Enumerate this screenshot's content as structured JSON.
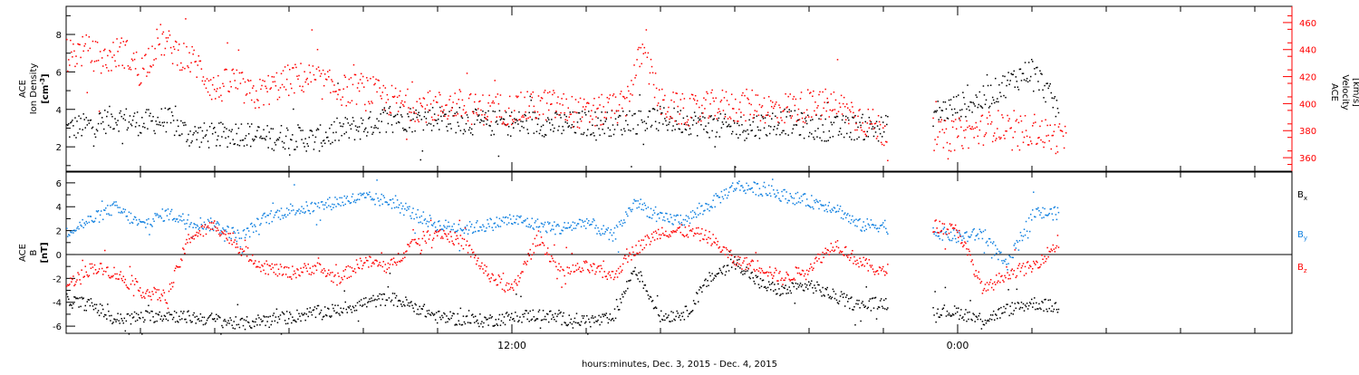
{
  "chart_data": [
    {
      "type": "scatter",
      "panel": "top",
      "title": "",
      "ylabel_left": [
        "ACE",
        "Ion Density",
        "[cm",
        "-3",
        "]"
      ],
      "ylabel_right": [
        "ACE",
        "Velocity",
        "[km/s]"
      ],
      "x_range_hours": [
        0,
        33
      ],
      "y_left_range": [
        0.7,
        9.5
      ],
      "y_right_range": [
        350,
        472
      ],
      "y_left_ticks": [
        2,
        4,
        6,
        8
      ],
      "y_right_ticks": [
        360,
        380,
        400,
        420,
        440,
        460
      ],
      "grid": false,
      "series": [
        {
          "name": "",
          "axis": "left",
          "color": "#000000",
          "values": [
            [
              0.0,
              3.0
            ],
            [
              0.7,
              3.2
            ],
            [
              1.3,
              3.6
            ],
            [
              2.0,
              3.3
            ],
            [
              2.7,
              3.5
            ],
            [
              3.3,
              2.7
            ],
            [
              4.0,
              2.6
            ],
            [
              4.7,
              2.8
            ],
            [
              5.3,
              2.5
            ],
            [
              6.0,
              2.6
            ],
            [
              6.7,
              2.4
            ],
            [
              7.3,
              2.9
            ],
            [
              8.0,
              3.1
            ],
            [
              8.7,
              3.7
            ],
            [
              9.3,
              3.5
            ],
            [
              10.0,
              3.6
            ],
            [
              10.7,
              3.4
            ],
            [
              11.3,
              3.3
            ],
            [
              12.0,
              3.3
            ],
            [
              12.7,
              3.3
            ],
            [
              13.3,
              3.2
            ],
            [
              14.0,
              3.3
            ],
            [
              14.7,
              3.3
            ],
            [
              15.3,
              3.4
            ],
            [
              16.0,
              3.5
            ],
            [
              16.7,
              3.4
            ],
            [
              17.3,
              3.2
            ],
            [
              18.0,
              3.0
            ],
            [
              18.7,
              3.2
            ],
            [
              19.3,
              3.4
            ],
            [
              20.0,
              3.1
            ],
            [
              20.7,
              3.0
            ],
            [
              21.3,
              3.1
            ],
            [
              22.0,
              3.0
            ],
            [
              23.3,
              3.8
            ],
            [
              24.0,
              4.2
            ],
            [
              24.7,
              4.6
            ],
            [
              25.3,
              5.4
            ],
            [
              26.0,
              6.2
            ],
            [
              26.7,
              4.0
            ]
          ]
        },
        {
          "name": "",
          "axis": "right",
          "color": "#ff0000",
          "values": [
            [
              0.0,
              436
            ],
            [
              0.5,
              440
            ],
            [
              1.0,
              432
            ],
            [
              1.5,
              440
            ],
            [
              2.0,
              425
            ],
            [
              2.5,
              448
            ],
            [
              3.0,
              438
            ],
            [
              3.5,
              430
            ],
            [
              4.0,
              410
            ],
            [
              4.5,
              418
            ],
            [
              5.0,
              405
            ],
            [
              5.5,
              412
            ],
            [
              6.0,
              418
            ],
            [
              6.5,
              420
            ],
            [
              7.0,
              414
            ],
            [
              7.5,
              410
            ],
            [
              8.0,
              412
            ],
            [
              8.5,
              405
            ],
            [
              9.0,
              400
            ],
            [
              9.5,
              399
            ],
            [
              10.0,
              398
            ],
            [
              10.5,
              400
            ],
            [
              11.0,
              396
            ],
            [
              11.5,
              397
            ],
            [
              12.0,
              396
            ],
            [
              12.5,
              398
            ],
            [
              13.0,
              400
            ],
            [
              13.5,
              396
            ],
            [
              14.0,
              392
            ],
            [
              14.5,
              396
            ],
            [
              15.0,
              398
            ],
            [
              15.5,
              440
            ],
            [
              16.0,
              400
            ],
            [
              16.5,
              396
            ],
            [
              17.0,
              395
            ],
            [
              17.5,
              400
            ],
            [
              18.0,
              398
            ],
            [
              18.5,
              400
            ],
            [
              19.0,
              396
            ],
            [
              19.5,
              398
            ],
            [
              20.0,
              398
            ],
            [
              20.5,
              400
            ],
            [
              21.0,
              396
            ],
            [
              22.0,
              380
            ],
            [
              23.0,
              380
            ],
            [
              23.3,
              378
            ],
            [
              23.7,
              376
            ],
            [
              24.0,
              378
            ],
            [
              24.5,
              380
            ],
            [
              25.0,
              385
            ],
            [
              25.5,
              378
            ],
            [
              26.0,
              382
            ],
            [
              26.5,
              376
            ],
            [
              26.9,
              374
            ]
          ]
        }
      ]
    },
    {
      "type": "scatter",
      "panel": "bottom",
      "title": "",
      "ylabel_left": [
        "ACE",
        "B",
        "[nT]"
      ],
      "x_range_hours": [
        0,
        33
      ],
      "y_range": [
        -6.6,
        6.9
      ],
      "y_ticks": [
        -6,
        -4,
        -2,
        0,
        2,
        4,
        6
      ],
      "zero_line": true,
      "grid": false,
      "series": [
        {
          "name": "Bx",
          "color": "#000000",
          "values": [
            [
              0.0,
              -3.8
            ],
            [
              0.7,
              -4.2
            ],
            [
              1.3,
              -5.4
            ],
            [
              2.0,
              -5.2
            ],
            [
              2.7,
              -5.0
            ],
            [
              3.3,
              -5.2
            ],
            [
              4.0,
              -5.4
            ],
            [
              4.7,
              -5.8
            ],
            [
              5.3,
              -5.4
            ],
            [
              6.0,
              -5.2
            ],
            [
              6.7,
              -4.8
            ],
            [
              7.3,
              -4.6
            ],
            [
              8.0,
              -4.0
            ],
            [
              8.7,
              -3.6
            ],
            [
              9.3,
              -4.2
            ],
            [
              10.0,
              -5.2
            ],
            [
              10.7,
              -5.4
            ],
            [
              11.3,
              -5.5
            ],
            [
              12.0,
              -5.2
            ],
            [
              12.7,
              -5.0
            ],
            [
              13.3,
              -5.3
            ],
            [
              14.0,
              -5.5
            ],
            [
              14.7,
              -5.4
            ],
            [
              15.3,
              -1.0
            ],
            [
              16.0,
              -5.2
            ],
            [
              16.7,
              -4.8
            ],
            [
              17.3,
              -2.0
            ],
            [
              18.0,
              -0.5
            ],
            [
              18.7,
              -2.5
            ],
            [
              19.3,
              -3.0
            ],
            [
              20.0,
              -2.5
            ],
            [
              20.7,
              -3.5
            ],
            [
              21.3,
              -4.2
            ],
            [
              22.0,
              -4.0
            ],
            [
              23.3,
              -4.6
            ],
            [
              24.0,
              -4.8
            ],
            [
              24.7,
              -5.4
            ],
            [
              25.3,
              -4.6
            ],
            [
              26.0,
              -4.0
            ],
            [
              26.7,
              -4.4
            ]
          ]
        },
        {
          "name": "By",
          "color": "#1080e0",
          "values": [
            [
              0.0,
              2.0
            ],
            [
              0.7,
              3.0
            ],
            [
              1.3,
              4.0
            ],
            [
              2.0,
              2.5
            ],
            [
              2.7,
              3.5
            ],
            [
              3.3,
              2.8
            ],
            [
              4.0,
              2.5
            ],
            [
              4.7,
              1.5
            ],
            [
              5.3,
              3.0
            ],
            [
              6.0,
              3.8
            ],
            [
              6.7,
              4.0
            ],
            [
              7.3,
              4.5
            ],
            [
              8.0,
              4.8
            ],
            [
              8.7,
              4.5
            ],
            [
              9.3,
              3.5
            ],
            [
              10.0,
              2.5
            ],
            [
              10.7,
              2.2
            ],
            [
              11.3,
              2.5
            ],
            [
              12.0,
              3.0
            ],
            [
              12.7,
              2.5
            ],
            [
              13.3,
              2.2
            ],
            [
              14.0,
              2.8
            ],
            [
              14.7,
              1.5
            ],
            [
              15.3,
              4.5
            ],
            [
              16.0,
              3.0
            ],
            [
              16.7,
              3.0
            ],
            [
              17.3,
              4.2
            ],
            [
              18.0,
              5.8
            ],
            [
              18.7,
              5.5
            ],
            [
              19.3,
              5.0
            ],
            [
              20.0,
              4.5
            ],
            [
              20.7,
              4.0
            ],
            [
              21.3,
              2.5
            ],
            [
              22.0,
              2.5
            ],
            [
              23.3,
              2.0
            ],
            [
              24.0,
              1.5
            ],
            [
              24.7,
              1.8
            ],
            [
              25.3,
              -1.0
            ],
            [
              26.0,
              3.5
            ],
            [
              26.7,
              3.5
            ]
          ]
        },
        {
          "name": "Bz",
          "color": "#ff0000",
          "values": [
            [
              0.0,
              -2.5
            ],
            [
              0.7,
              -1.0
            ],
            [
              1.3,
              -1.5
            ],
            [
              2.0,
              -3.0
            ],
            [
              2.7,
              -3.5
            ],
            [
              3.3,
              1.5
            ],
            [
              4.0,
              2.5
            ],
            [
              4.7,
              0.5
            ],
            [
              5.3,
              -1.0
            ],
            [
              6.0,
              -1.5
            ],
            [
              6.7,
              -1.0
            ],
            [
              7.3,
              -2.0
            ],
            [
              8.0,
              -0.5
            ],
            [
              8.7,
              -1.0
            ],
            [
              9.3,
              1.0
            ],
            [
              10.0,
              2.0
            ],
            [
              10.7,
              1.0
            ],
            [
              11.3,
              -1.5
            ],
            [
              12.0,
              -3.0
            ],
            [
              12.7,
              1.5
            ],
            [
              13.3,
              -1.5
            ],
            [
              14.0,
              -1.0
            ],
            [
              14.7,
              -1.8
            ],
            [
              15.3,
              0.5
            ],
            [
              16.0,
              2.0
            ],
            [
              16.7,
              2.0
            ],
            [
              17.3,
              1.5
            ],
            [
              18.0,
              -0.5
            ],
            [
              18.7,
              -1.0
            ],
            [
              19.3,
              -2.0
            ],
            [
              20.0,
              -1.0
            ],
            [
              20.7,
              1.0
            ],
            [
              21.3,
              -0.5
            ],
            [
              22.0,
              -1.5
            ],
            [
              23.3,
              2.5
            ],
            [
              24.0,
              2.0
            ],
            [
              24.7,
              -3.0
            ],
            [
              25.3,
              -1.5
            ],
            [
              26.0,
              -1.0
            ],
            [
              26.7,
              1.0
            ]
          ]
        }
      ],
      "legend": [
        "B",
        "B",
        "B"
      ],
      "legend_subscripts": [
        "x",
        "y",
        "z"
      ],
      "legend_colors": [
        "#000000",
        "#1080e0",
        "#ff0000"
      ],
      "legend_placement": "right"
    }
  ],
  "x_axis": {
    "tick_labels": [
      "12:00",
      "0:00"
    ],
    "tick_label_hours": [
      12,
      24
    ],
    "minor_tick_step_hours": 2,
    "xlabel": "hours:minutes, Dec.  3, 2015 - Dec.  4, 2015"
  },
  "colors": {
    "black": "#000000",
    "red": "#ff0000",
    "blue": "#1080e0"
  }
}
